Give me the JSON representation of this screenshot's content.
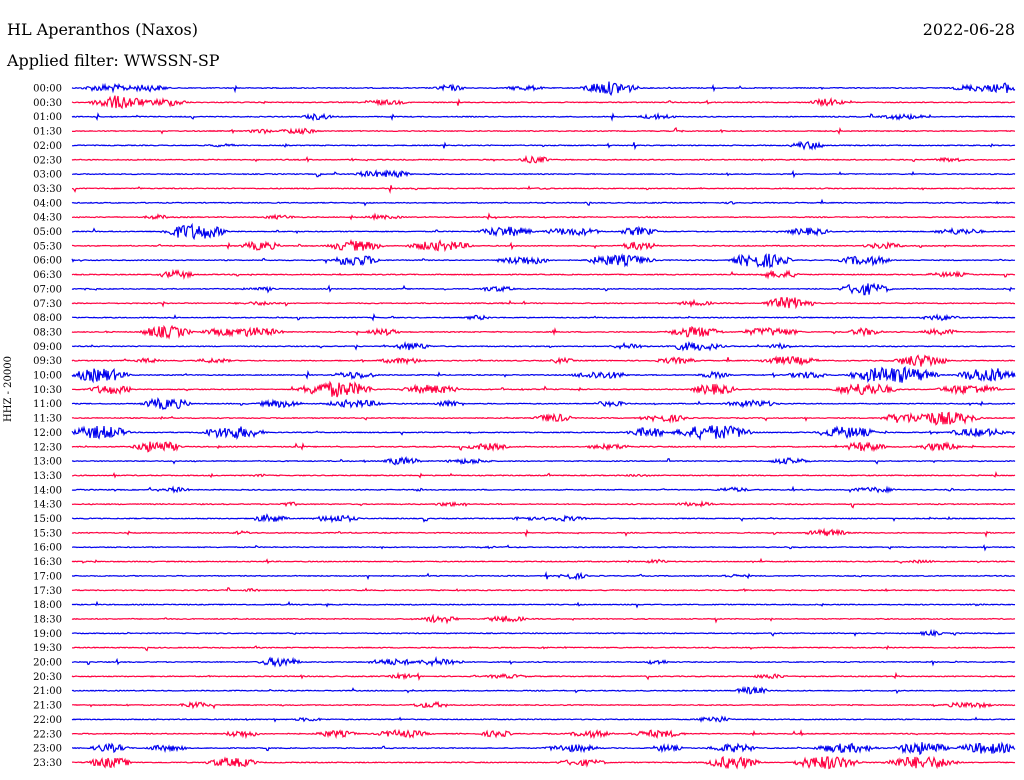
{
  "header": {
    "station": "HL Aperanthos (Naxos)",
    "date": "2022-06-28",
    "filter": "Applied filter: WWSSN-SP"
  },
  "colors": {
    "odd_trace": "#0000ee",
    "even_trace": "#ff0040"
  },
  "chart_data": {
    "type": "line",
    "title": "HL Aperanthos (Naxos)",
    "subtitle": "Applied filter: WWSSN-SP",
    "ylabel": "HHZ - 20000",
    "xlabel": "",
    "grid": false,
    "legend": "none",
    "trace_minutes": 30,
    "rows": [
      {
        "label": "00:00",
        "color": "blue",
        "activity": [
          [
            57,
            2.6
          ],
          [
            8,
            1.3
          ],
          [
            4,
            1.4
          ],
          [
            40,
            1.2
          ],
          [
            48,
            1.0
          ],
          [
            96,
            1.3
          ],
          [
            99,
            2.0
          ]
        ]
      },
      {
        "label": "00:30",
        "color": "red",
        "activity": [
          [
            5,
            2.6
          ],
          [
            10,
            1.4
          ],
          [
            33,
            1.0
          ],
          [
            80,
            1.4
          ]
        ]
      },
      {
        "label": "01:00",
        "color": "blue",
        "activity": [
          [
            26,
            1.2
          ],
          [
            62,
            1.0
          ],
          [
            88,
            1.0
          ]
        ]
      },
      {
        "label": "01:30",
        "color": "red",
        "activity": [
          [
            20,
            0.9
          ],
          [
            24,
            1.1
          ]
        ]
      },
      {
        "label": "02:00",
        "color": "blue",
        "activity": [
          [
            78,
            1.5
          ],
          [
            16,
            0.6
          ]
        ]
      },
      {
        "label": "02:30",
        "color": "red",
        "activity": [
          [
            49,
            1.3
          ],
          [
            93,
            0.8
          ]
        ]
      },
      {
        "label": "03:00",
        "color": "blue",
        "activity": [
          [
            34,
            1.4
          ],
          [
            32,
            1.2
          ]
        ]
      },
      {
        "label": "03:30",
        "color": "red",
        "activity": [
          [
            50,
            0.4
          ]
        ]
      },
      {
        "label": "04:00",
        "color": "blue",
        "activity": [
          [
            70,
            0.5
          ]
        ]
      },
      {
        "label": "04:30",
        "color": "red",
        "activity": [
          [
            9,
            0.9
          ],
          [
            22,
            0.8
          ],
          [
            33,
            0.7
          ]
        ]
      },
      {
        "label": "05:00",
        "color": "blue",
        "activity": [
          [
            13,
            3.0
          ],
          [
            46,
            1.9
          ],
          [
            53,
            1.5
          ],
          [
            60,
            1.6
          ],
          [
            78,
            1.4
          ],
          [
            94,
            1.2
          ]
        ]
      },
      {
        "label": "05:30",
        "color": "red",
        "activity": [
          [
            20,
            1.7
          ],
          [
            30,
            2.0
          ],
          [
            39,
            1.9
          ],
          [
            60,
            1.6
          ],
          [
            86,
            1.2
          ]
        ]
      },
      {
        "label": "06:00",
        "color": "blue",
        "activity": [
          [
            30,
            2.2
          ],
          [
            48,
            1.7
          ],
          [
            58,
            2.1
          ],
          [
            73,
            2.8
          ],
          [
            84,
            1.8
          ]
        ]
      },
      {
        "label": "06:30",
        "color": "red",
        "activity": [
          [
            11,
            1.5
          ],
          [
            75,
            1.4
          ],
          [
            93,
            0.9
          ]
        ]
      },
      {
        "label": "07:00",
        "color": "blue",
        "activity": [
          [
            84,
            2.3
          ],
          [
            45,
            1.0
          ],
          [
            20,
            0.6
          ]
        ]
      },
      {
        "label": "07:30",
        "color": "red",
        "activity": [
          [
            76,
            2.3
          ],
          [
            66,
            1.0
          ],
          [
            20,
            0.7
          ]
        ]
      },
      {
        "label": "08:00",
        "color": "blue",
        "activity": [
          [
            43,
            0.9
          ],
          [
            92,
            1.1
          ]
        ]
      },
      {
        "label": "08:30",
        "color": "red",
        "activity": [
          [
            10,
            2.3
          ],
          [
            16,
            1.3
          ],
          [
            19,
            1.8
          ],
          [
            33,
            1.3
          ],
          [
            66,
            2.0
          ],
          [
            74,
            1.6
          ],
          [
            84,
            1.4
          ],
          [
            92,
            1.1
          ]
        ]
      },
      {
        "label": "09:00",
        "color": "blue",
        "activity": [
          [
            36,
            1.5
          ],
          [
            59,
            1.1
          ],
          [
            66,
            1.6
          ],
          [
            75,
            1.0
          ]
        ]
      },
      {
        "label": "09:30",
        "color": "red",
        "activity": [
          [
            8,
            0.9
          ],
          [
            15,
            0.9
          ],
          [
            35,
            1.1
          ],
          [
            52,
            0.9
          ],
          [
            64,
            1.2
          ],
          [
            76,
            1.6
          ],
          [
            90,
            2.4
          ]
        ]
      },
      {
        "label": "10:00",
        "color": "blue",
        "activity": [
          [
            3,
            2.6
          ],
          [
            30,
            1.4
          ],
          [
            56,
            1.5
          ],
          [
            68,
            1.2
          ],
          [
            78,
            1.3
          ],
          [
            87,
            3.2
          ],
          [
            97,
            2.8
          ]
        ]
      },
      {
        "label": "10:30",
        "color": "red",
        "activity": [
          [
            4,
            1.8
          ],
          [
            28,
            3.0
          ],
          [
            38,
            1.7
          ],
          [
            68,
            2.0
          ],
          [
            84,
            2.4
          ],
          [
            95,
            1.8
          ]
        ]
      },
      {
        "label": "11:00",
        "color": "blue",
        "activity": [
          [
            10,
            2.2
          ],
          [
            22,
            1.4
          ],
          [
            30,
            1.5
          ],
          [
            40,
            1.2
          ],
          [
            57,
            1.0
          ],
          [
            72,
            1.3
          ]
        ]
      },
      {
        "label": "11:30",
        "color": "red",
        "activity": [
          [
            51,
            1.6
          ],
          [
            63,
            1.4
          ],
          [
            92,
            2.6
          ],
          [
            88,
            1.9
          ]
        ]
      },
      {
        "label": "12:00",
        "color": "blue",
        "activity": [
          [
            3,
            2.6
          ],
          [
            17,
            2.4
          ],
          [
            68,
            2.8
          ],
          [
            61,
            1.8
          ],
          [
            82,
            2.2
          ],
          [
            96,
            1.6
          ]
        ]
      },
      {
        "label": "12:30",
        "color": "red",
        "activity": [
          [
            9,
            2.2
          ],
          [
            44,
            1.3
          ],
          [
            57,
            1.0
          ],
          [
            84,
            1.8
          ],
          [
            92,
            1.5
          ]
        ]
      },
      {
        "label": "13:00",
        "color": "blue",
        "activity": [
          [
            35,
            1.5
          ],
          [
            76,
            1.2
          ],
          [
            42,
            1.0
          ]
        ]
      },
      {
        "label": "13:30",
        "color": "red",
        "activity": [
          [
            20,
            0.5
          ],
          [
            60,
            0.5
          ]
        ]
      },
      {
        "label": "14:00",
        "color": "blue",
        "activity": [
          [
            11,
            1.0
          ],
          [
            70,
            0.9
          ],
          [
            85,
            1.0
          ],
          [
            37,
            0.6
          ]
        ]
      },
      {
        "label": "14:30",
        "color": "red",
        "activity": [
          [
            23,
            0.7
          ],
          [
            40,
            0.8
          ],
          [
            66,
            0.8
          ]
        ]
      },
      {
        "label": "15:00",
        "color": "blue",
        "activity": [
          [
            21,
            1.5
          ],
          [
            28,
            1.4
          ],
          [
            52,
            1.0
          ],
          [
            48,
            0.9
          ]
        ]
      },
      {
        "label": "15:30",
        "color": "red",
        "activity": [
          [
            18,
            0.7
          ],
          [
            80,
            1.3
          ]
        ]
      },
      {
        "label": "16:00",
        "color": "blue",
        "activity": [
          [
            44,
            0.5
          ]
        ]
      },
      {
        "label": "16:30",
        "color": "red",
        "activity": [
          [
            62,
            0.8
          ],
          [
            90,
            0.6
          ]
        ]
      },
      {
        "label": "17:00",
        "color": "blue",
        "activity": [
          [
            53,
            1.2
          ],
          [
            70,
            0.6
          ]
        ]
      },
      {
        "label": "17:30",
        "color": "red",
        "activity": [
          [
            19,
            0.6
          ]
        ]
      },
      {
        "label": "18:00",
        "color": "blue",
        "activity": [
          [
            96,
            0.5
          ]
        ]
      },
      {
        "label": "18:30",
        "color": "red",
        "activity": [
          [
            39,
            1.5
          ],
          [
            46,
            1.2
          ]
        ]
      },
      {
        "label": "19:00",
        "color": "blue",
        "activity": [
          [
            91,
            0.9
          ]
        ]
      },
      {
        "label": "19:30",
        "color": "red",
        "activity": [
          [
            50,
            0.4
          ]
        ]
      },
      {
        "label": "20:00",
        "color": "blue",
        "activity": [
          [
            22,
            1.8
          ],
          [
            39,
            1.5
          ],
          [
            34,
            1.2
          ],
          [
            62,
            0.9
          ]
        ]
      },
      {
        "label": "20:30",
        "color": "red",
        "activity": [
          [
            35,
            1.0
          ],
          [
            74,
            0.9
          ],
          [
            46,
            0.8
          ]
        ]
      },
      {
        "label": "21:00",
        "color": "blue",
        "activity": [
          [
            72,
            1.4
          ]
        ]
      },
      {
        "label": "21:30",
        "color": "red",
        "activity": [
          [
            13,
            1.2
          ],
          [
            38,
            1.1
          ],
          [
            95,
            1.1
          ]
        ]
      },
      {
        "label": "22:00",
        "color": "blue",
        "activity": [
          [
            68,
            1.3
          ],
          [
            25,
            0.7
          ]
        ]
      },
      {
        "label": "22:30",
        "color": "red",
        "activity": [
          [
            18,
            1.4
          ],
          [
            28,
            1.3
          ],
          [
            35,
            1.4
          ],
          [
            45,
            1.3
          ],
          [
            55,
            1.3
          ],
          [
            62,
            1.4
          ]
        ]
      },
      {
        "label": "23:00",
        "color": "blue",
        "activity": [
          [
            4,
            1.6
          ],
          [
            10,
            1.2
          ],
          [
            53,
            1.4
          ],
          [
            63,
            1.3
          ],
          [
            70,
            1.6
          ],
          [
            82,
            1.8
          ],
          [
            90,
            2.4
          ],
          [
            97,
            2.2
          ]
        ]
      },
      {
        "label": "23:30",
        "color": "red",
        "activity": [
          [
            4,
            2.0
          ],
          [
            17,
            1.8
          ],
          [
            54,
            1.2
          ],
          [
            70,
            2.4
          ],
          [
            80,
            2.6
          ],
          [
            90,
            2.4
          ]
        ]
      }
    ]
  }
}
